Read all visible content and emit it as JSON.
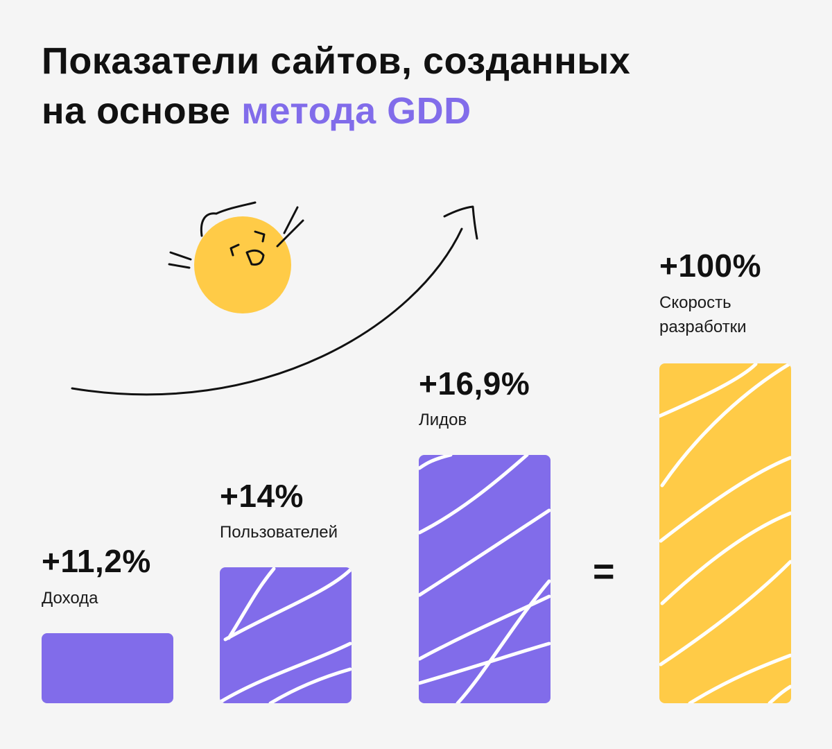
{
  "title": {
    "line1": "Показатели сайтов, созданных",
    "line2_plain": "на основе",
    "line2_accent": "метода  GDD"
  },
  "equals_sign": "=",
  "colors": {
    "accent": "#816CEA",
    "yellow": "#FFCB47",
    "background": "#F5F5F5",
    "text": "#111111"
  },
  "chart_data": {
    "type": "bar",
    "categories": [
      "Дохода",
      "Пользователей",
      "Лидов",
      "Скорость разработки"
    ],
    "values": [
      11.2,
      14,
      16.9,
      100
    ],
    "value_labels": [
      "+11,2%",
      "+14%",
      "+16,9%",
      "+100%"
    ],
    "label_lines": [
      [
        "Дохода"
      ],
      [
        "Пользователей"
      ],
      [
        "Лидов"
      ],
      [
        "Скорость",
        "разработки"
      ]
    ],
    "bar_colors": [
      "#816CEA",
      "#816CEA",
      "#816CEA",
      "#FFCB47"
    ],
    "title": "",
    "xlabel": "",
    "ylabel": "",
    "grid": false,
    "legend": "none"
  }
}
